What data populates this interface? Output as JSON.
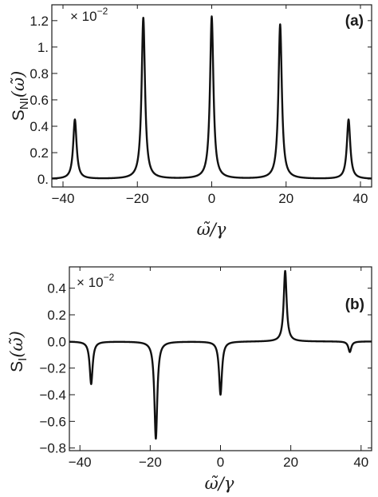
{
  "chart_data": [
    {
      "type": "line",
      "panel_label": "(a)",
      "multiplier": "× 10",
      "multiplier_exp": "−2",
      "ylabel_main": "S",
      "ylabel_sub": "NI",
      "ylabel_arg": "(ω̃)",
      "xlabel": "ω̃/γ",
      "xlim": [
        -43,
        43
      ],
      "ylim": [
        -0.06,
        1.32
      ],
      "xticks": [
        -40,
        -20,
        0,
        20,
        40
      ],
      "xtick_labels": [
        "−40",
        "−20",
        "0",
        "20",
        "40"
      ],
      "yticks": [
        0,
        0.2,
        0.4,
        0.6,
        0.8,
        1,
        1.2
      ],
      "ytick_labels": [
        "0.",
        "0.2",
        "0.4",
        "0.6",
        "0.8",
        "1.",
        "1.2"
      ],
      "series": [
        {
          "peaks": [
            {
              "x": -36.8,
              "height": 0.45,
              "width": 0.55
            },
            {
              "x": -18.4,
              "height": 1.22,
              "width": 0.55
            },
            {
              "x": 0,
              "height": 1.23,
              "width": 0.55
            },
            {
              "x": 18.4,
              "height": 1.17,
              "width": 0.55
            },
            {
              "x": 36.8,
              "height": 0.45,
              "width": 0.55
            }
          ]
        }
      ]
    },
    {
      "type": "line",
      "panel_label": "(b)",
      "multiplier": "× 10",
      "multiplier_exp": "−2",
      "ylabel_main": "S",
      "ylabel_sub": "I",
      "ylabel_arg": "(ω̃)",
      "xlabel": "ω̃/γ",
      "xlim": [
        -43,
        43
      ],
      "ylim": [
        -0.82,
        0.56
      ],
      "xticks": [
        -40,
        -20,
        0,
        20,
        40
      ],
      "xtick_labels": [
        "−40",
        "−20",
        "0",
        "20",
        "40"
      ],
      "yticks": [
        -0.8,
        -0.6,
        -0.4,
        -0.2,
        0,
        0.2,
        0.4
      ],
      "ytick_labels": [
        "−0.8",
        "−0.6",
        "−0.4",
        "−0.2",
        "0.0",
        "0.2",
        "0.4"
      ],
      "series": [
        {
          "peaks": [
            {
              "x": -36.8,
              "height": -0.32,
              "width": 0.5
            },
            {
              "x": -18.4,
              "height": -0.73,
              "width": 0.5
            },
            {
              "x": 0,
              "height": -0.4,
              "width": 0.5
            },
            {
              "x": 18.4,
              "height": 0.53,
              "width": 0.5
            },
            {
              "x": 36.8,
              "height": -0.08,
              "width": 0.5
            }
          ]
        }
      ]
    }
  ]
}
